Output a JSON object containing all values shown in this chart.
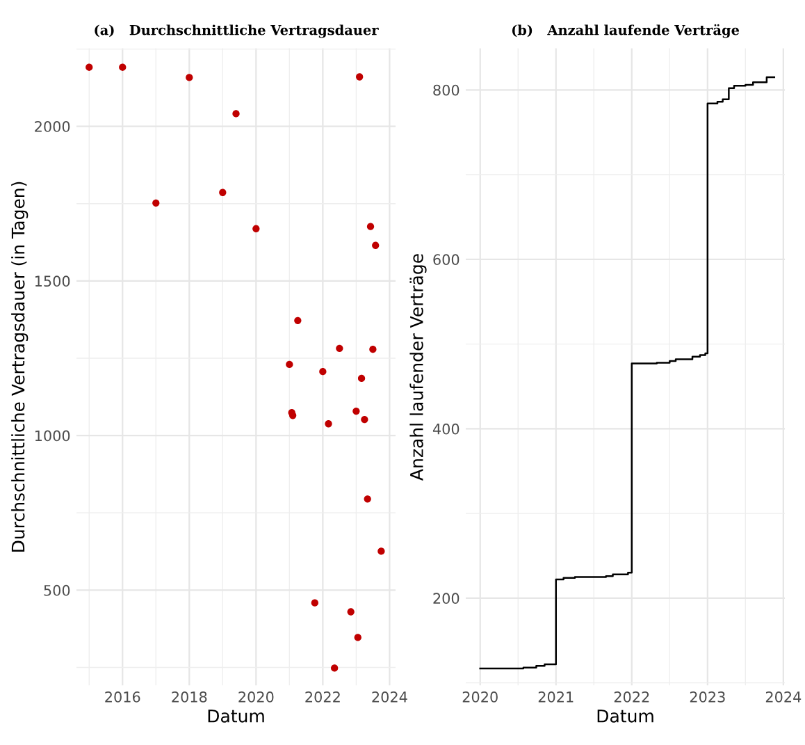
{
  "chart_data": [
    {
      "type": "scatter",
      "title": "(a)   Durchschnittliche Vertragsdauer",
      "xlabel": "Datum",
      "ylabel": "Durchschnittliche Vertragsdauer (in Tagen)",
      "x": [
        2015.0,
        2016.0,
        2017.0,
        2018.0,
        2019.0,
        2019.4,
        2020.0,
        2021.0,
        2021.07,
        2021.1,
        2021.25,
        2021.76,
        2022.0,
        2022.17,
        2022.35,
        2022.5,
        2022.84,
        2023.0,
        2023.05,
        2023.1,
        2023.16,
        2023.25,
        2023.34,
        2023.43,
        2023.5,
        2023.58,
        2023.75
      ],
      "series": [
        {
          "color": "#c00000",
          "values": [
            2191,
            2191,
            1752,
            2158,
            1786,
            2041,
            1669,
            1230,
            1074,
            1065,
            1372,
            459,
            1207,
            1038,
            248,
            1282,
            430,
            1079,
            347,
            2160,
            1185,
            1052,
            795,
            1676,
            1279,
            1615,
            626
          ]
        }
      ],
      "marker": "circle",
      "grid": true,
      "xlim": [
        2014.62,
        2024.18
      ],
      "xticks": [
        2016,
        2018,
        2020,
        2022,
        2024
      ],
      "ylim": [
        192,
        2252
      ],
      "yticks": [
        500,
        1000,
        1500,
        2000
      ]
    },
    {
      "type": "step",
      "title": "(b)   Anzahl laufende Verträge",
      "xlabel": "Datum",
      "ylabel": "Anzahl laufender Verträge",
      "x": [
        2020.0,
        2020.57,
        2020.74,
        2020.85,
        2021.0,
        2021.1,
        2021.25,
        2021.66,
        2021.75,
        2021.95,
        2022.0,
        2022.33,
        2022.5,
        2022.58,
        2022.8,
        2022.9,
        2022.97,
        2023.0,
        2023.13,
        2023.2,
        2023.28,
        2023.35,
        2023.5,
        2023.6,
        2023.78,
        2023.88
      ],
      "series": [
        {
          "color": "#000000",
          "values": [
            117,
            118,
            120,
            122,
            222,
            224,
            225,
            226,
            228,
            230,
            477,
            478,
            480,
            482,
            485,
            487,
            489,
            784,
            786,
            789,
            802,
            805,
            806,
            809,
            815,
            815
          ]
        }
      ],
      "line_style": "solid",
      "grid": true,
      "xlim": [
        2019.81,
        2024.02
      ],
      "xticks": [
        2020,
        2021,
        2022,
        2023,
        2024
      ],
      "ylim": [
        97,
        849
      ],
      "yticks": [
        200,
        400,
        600,
        800
      ]
    }
  ]
}
